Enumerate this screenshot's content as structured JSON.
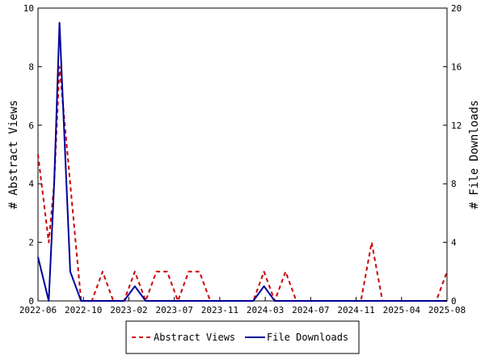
{
  "chart_data": {
    "type": "line",
    "x_ticks": [
      "2022-06",
      "2022-10",
      "2023-02",
      "2023-07",
      "2023-11",
      "2024-03",
      "2024-07",
      "2024-11",
      "2025-04",
      "2025-08"
    ],
    "y_left_label": "# Abstract Views",
    "y_right_label": "# File Downloads",
    "y_left_ticks": [
      "0",
      "2",
      "4",
      "6",
      "8",
      "10"
    ],
    "y_right_ticks": [
      "0",
      "4",
      "8",
      "12",
      "16",
      "20"
    ],
    "y_left_lim": [
      0,
      10
    ],
    "y_right_lim": [
      0,
      20
    ],
    "x_range": [
      "2022-06",
      "2025-08"
    ],
    "legend_position": "bottom-center",
    "series": [
      {
        "name": "Abstract Views",
        "axis": "left",
        "color": "#cc0000",
        "style": "dashed",
        "points": [
          [
            "2022-06",
            5
          ],
          [
            "2022-07",
            2
          ],
          [
            "2022-07",
            4
          ],
          [
            "2022-08",
            8
          ],
          [
            "2022-09",
            4
          ],
          [
            "2022-10",
            0
          ],
          [
            "2022-11",
            0
          ],
          [
            "2022-12",
            1
          ],
          [
            "2023-01",
            0
          ],
          [
            "2023-02",
            0
          ],
          [
            "2023-03",
            1
          ],
          [
            "2023-04",
            0
          ],
          [
            "2023-05",
            1
          ],
          [
            "2023-06",
            1
          ],
          [
            "2023-07",
            0
          ],
          [
            "2023-08",
            1
          ],
          [
            "2023-09",
            1
          ],
          [
            "2023-10",
            0
          ],
          [
            "2023-11",
            0
          ],
          [
            "2023-12",
            0
          ],
          [
            "2024-01",
            0
          ],
          [
            "2024-02",
            0
          ],
          [
            "2024-03",
            1
          ],
          [
            "2024-04",
            0
          ],
          [
            "2024-05",
            1
          ],
          [
            "2024-06",
            0
          ],
          [
            "2024-07",
            0
          ],
          [
            "2024-08",
            0
          ],
          [
            "2024-09",
            0
          ],
          [
            "2024-10",
            0
          ],
          [
            "2024-11",
            0
          ],
          [
            "2024-12",
            0
          ],
          [
            "2025-01",
            2
          ],
          [
            "2025-02",
            0
          ],
          [
            "2025-03",
            0
          ],
          [
            "2025-04",
            0
          ],
          [
            "2025-05",
            0
          ],
          [
            "2025-06",
            0
          ],
          [
            "2025-07",
            0
          ],
          [
            "2025-08",
            1
          ]
        ]
      },
      {
        "name": "File Downloads",
        "axis": "right",
        "color": "#000099",
        "style": "solid",
        "points": [
          [
            "2022-06",
            3
          ],
          [
            "2022-07",
            0
          ],
          [
            "2022-07",
            8
          ],
          [
            "2022-08",
            19
          ],
          [
            "2022-09",
            2
          ],
          [
            "2022-10",
            0
          ],
          [
            "2022-11",
            0
          ],
          [
            "2022-12",
            0
          ],
          [
            "2023-01",
            0
          ],
          [
            "2023-02",
            0
          ],
          [
            "2023-03",
            1
          ],
          [
            "2023-04",
            0
          ],
          [
            "2023-05",
            0
          ],
          [
            "2023-06",
            0
          ],
          [
            "2023-07",
            0
          ],
          [
            "2023-08",
            0
          ],
          [
            "2023-09",
            0
          ],
          [
            "2023-10",
            0
          ],
          [
            "2023-11",
            0
          ],
          [
            "2023-12",
            0
          ],
          [
            "2024-01",
            0
          ],
          [
            "2024-02",
            0
          ],
          [
            "2024-03",
            1
          ],
          [
            "2024-04",
            0
          ],
          [
            "2024-05",
            0
          ],
          [
            "2024-06",
            0
          ],
          [
            "2024-07",
            0
          ],
          [
            "2024-08",
            0
          ],
          [
            "2024-09",
            0
          ],
          [
            "2024-10",
            0
          ],
          [
            "2024-11",
            0
          ],
          [
            "2024-12",
            0
          ],
          [
            "2025-01",
            0
          ],
          [
            "2025-02",
            0
          ],
          [
            "2025-03",
            0
          ],
          [
            "2025-04",
            0
          ],
          [
            "2025-05",
            0
          ],
          [
            "2025-06",
            0
          ],
          [
            "2025-07",
            0
          ],
          [
            "2025-08",
            0
          ]
        ]
      }
    ]
  }
}
